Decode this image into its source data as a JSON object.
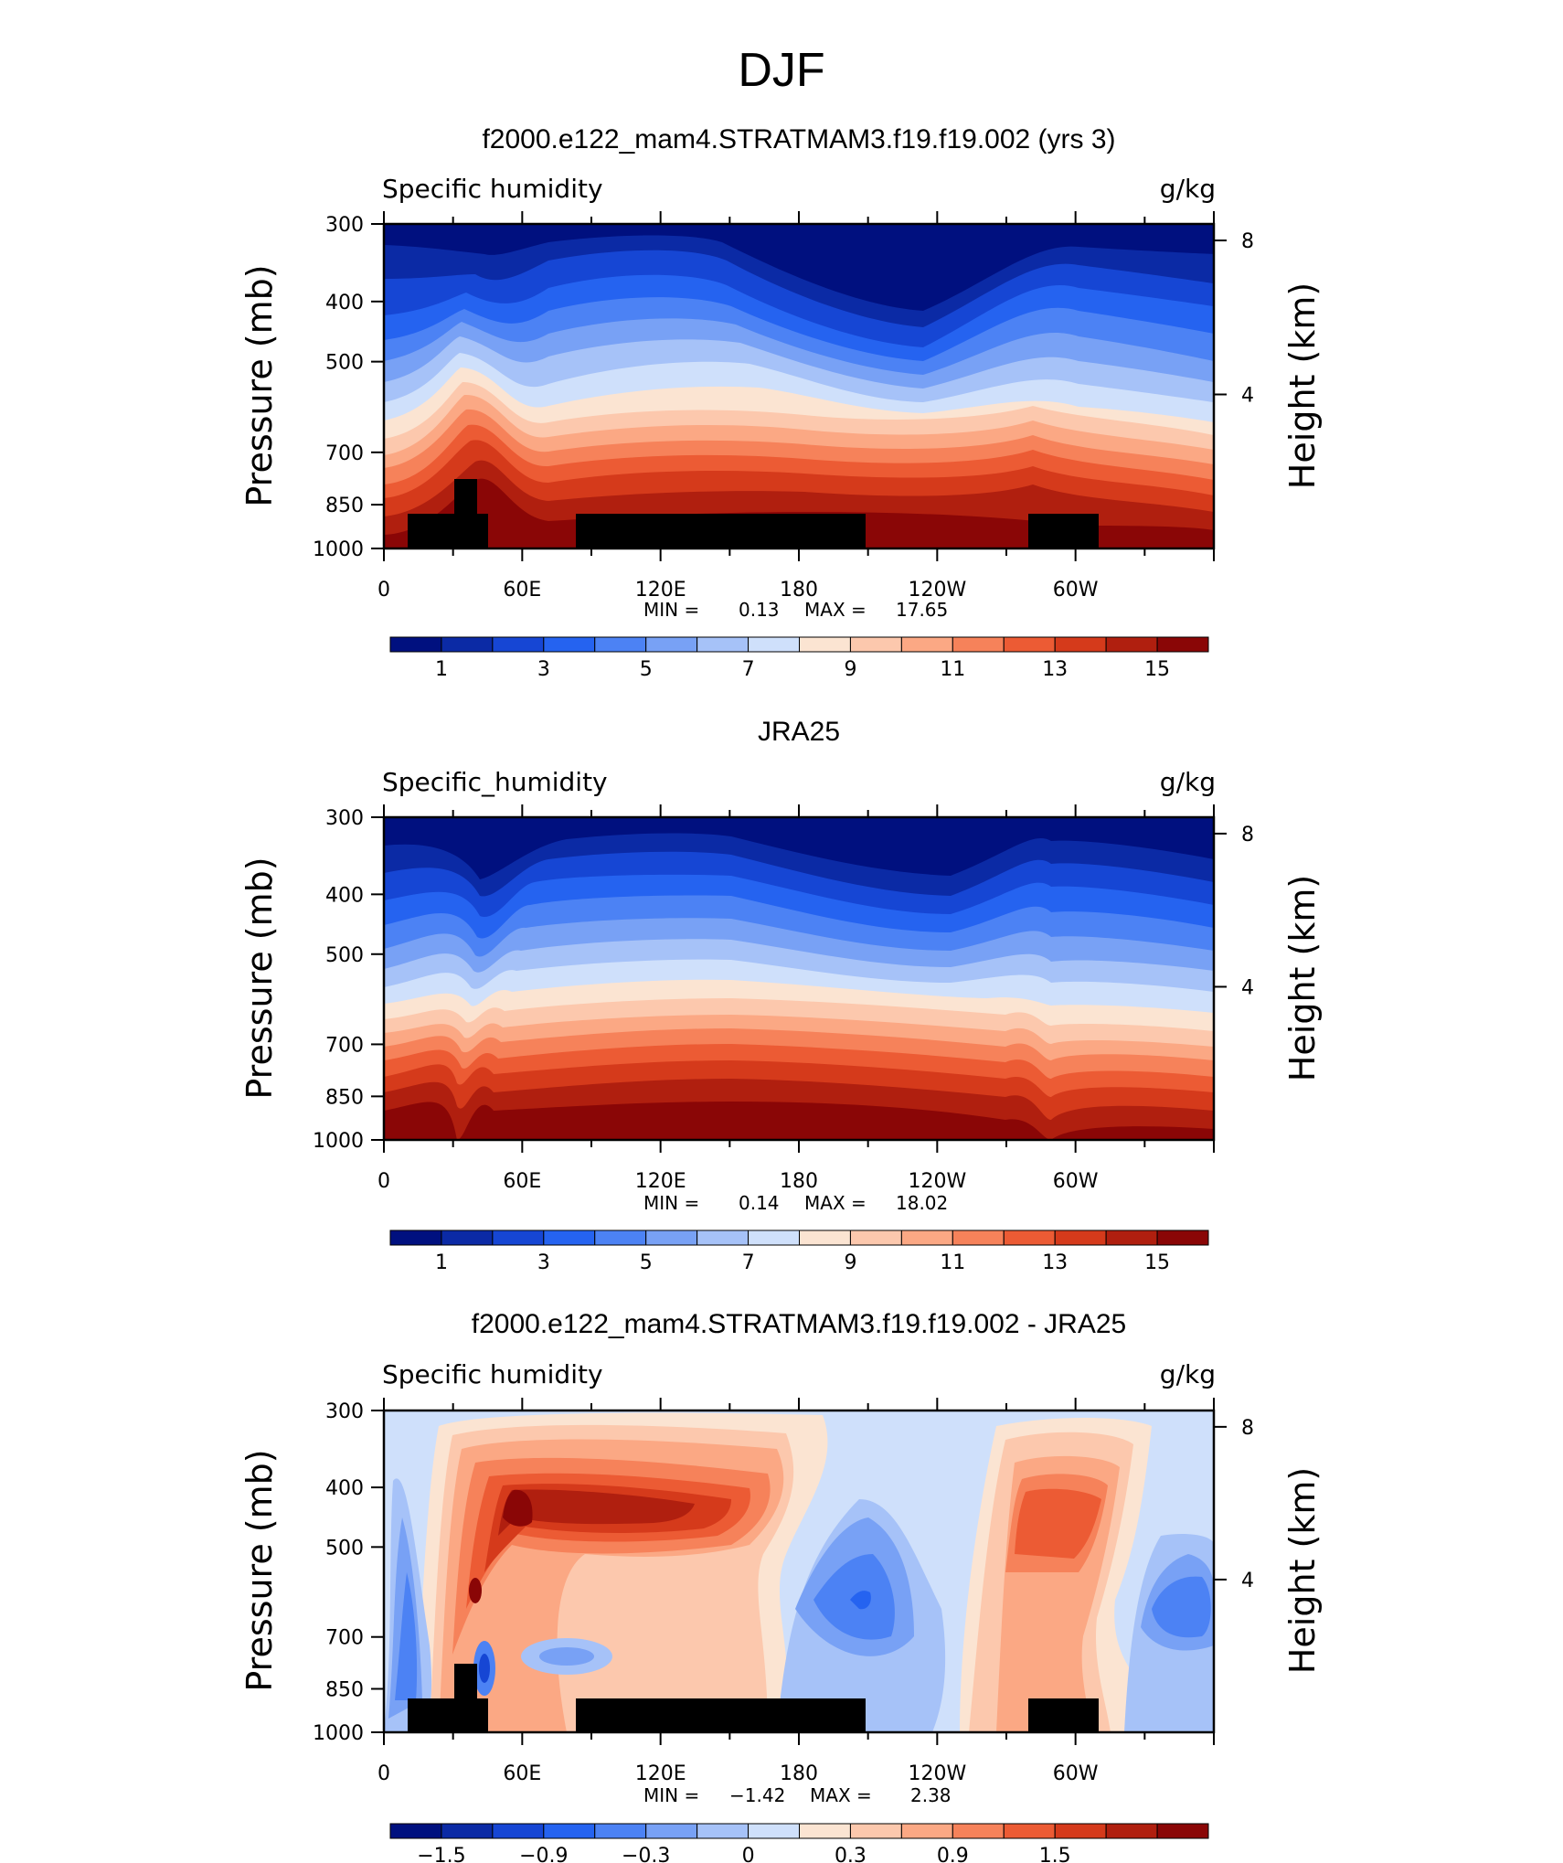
{
  "figure": {
    "title": "DJF"
  },
  "colors": {
    "abs_scale": [
      "#00107f",
      "#0b2aa5",
      "#1646d4",
      "#2563f0",
      "#4c82f4",
      "#78a1f5",
      "#a6c2f8",
      "#cfe0fb",
      "#fbe4d2",
      "#fcc8ad",
      "#fba884",
      "#f6825a",
      "#ec5b34",
      "#d53a1b",
      "#b01f0f",
      "#8a0606"
    ],
    "diff_scale": [
      "#00107f",
      "#0b2aa5",
      "#1646d4",
      "#2563f0",
      "#4c82f4",
      "#78a1f5",
      "#a6c2f8",
      "#cfe0fb",
      "#fbe4d2",
      "#fcc8ad",
      "#fba884",
      "#f6825a",
      "#ec5b34",
      "#d53a1b",
      "#b01f0f",
      "#8a0606"
    ],
    "land_mask": "#000000"
  },
  "chart_data": [
    {
      "type": "heatmap",
      "title": "f2000.e122_mam4.STRATMAM3.f19.f19.002 (yrs 3)",
      "variable": "Specific humidity",
      "units": "g/kg",
      "ylabel": "Pressure (mb)",
      "ylabel_right": "Height (km)",
      "x_ticks": [
        "0",
        "60E",
        "120E",
        "180",
        "120W",
        "60W"
      ],
      "y_ticks": [
        "300",
        "400",
        "500",
        "700",
        "850",
        "1000"
      ],
      "y_ticks_right": [
        "8",
        "4"
      ],
      "min_label": "MIN =",
      "min": "0.13",
      "max_label": "MAX =",
      "max": "17.65",
      "colorbar_labels": [
        "1",
        "3",
        "5",
        "7",
        "9",
        "11",
        "13",
        "15"
      ],
      "levels": [
        1,
        2,
        3,
        4,
        5,
        6,
        7,
        8,
        9,
        10,
        11,
        12,
        13,
        14,
        15
      ],
      "topography_mask": true
    },
    {
      "type": "heatmap",
      "title": "JRA25",
      "variable": "Specific_humidity",
      "units": "g/kg",
      "ylabel": "Pressure (mb)",
      "ylabel_right": "Height (km)",
      "x_ticks": [
        "0",
        "60E",
        "120E",
        "180",
        "120W",
        "60W"
      ],
      "y_ticks": [
        "300",
        "400",
        "500",
        "700",
        "850",
        "1000"
      ],
      "y_ticks_right": [
        "8",
        "4"
      ],
      "min_label": "MIN =",
      "min": "0.14",
      "max_label": "MAX =",
      "max": "18.02",
      "colorbar_labels": [
        "1",
        "3",
        "5",
        "7",
        "9",
        "11",
        "13",
        "15"
      ],
      "levels": [
        1,
        2,
        3,
        4,
        5,
        6,
        7,
        8,
        9,
        10,
        11,
        12,
        13,
        14,
        15
      ],
      "topography_mask": false
    },
    {
      "type": "heatmap",
      "title": "f2000.e122_mam4.STRATMAM3.f19.f19.002 - JRA25",
      "variable": "Specific humidity",
      "units": "g/kg",
      "ylabel": "Pressure (mb)",
      "ylabel_right": "Height (km)",
      "x_ticks": [
        "0",
        "60E",
        "120E",
        "180",
        "120W",
        "60W"
      ],
      "y_ticks": [
        "300",
        "400",
        "500",
        "700",
        "850",
        "1000"
      ],
      "y_ticks_right": [
        "8",
        "4"
      ],
      "min_label": "MIN =",
      "min": "−1.42",
      "max_label": "MAX =",
      "max": "2.38",
      "colorbar_labels": [
        "−1.5",
        "−0.9",
        "−0.3",
        "0",
        "0.3",
        "0.9",
        "1.5"
      ],
      "levels": [
        -2.1,
        -1.8,
        -1.5,
        -1.2,
        -0.9,
        -0.6,
        -0.3,
        0,
        0.3,
        0.6,
        0.9,
        1.2,
        1.5,
        1.8,
        2.1
      ],
      "topography_mask": true
    }
  ]
}
